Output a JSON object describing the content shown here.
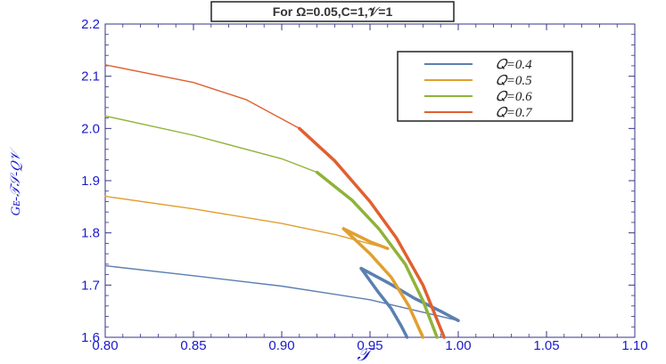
{
  "chart_data": {
    "type": "line",
    "title": "For Ω=0.05,C=1,𝒱=1",
    "xlabel": "𝒯",
    "ylabel": "Gᴇ-𝒯𝒮-𝑄𝒱",
    "xlim": [
      0.8,
      1.1
    ],
    "ylim": [
      1.6,
      2.2
    ],
    "xticks": [
      "0.80",
      "0.85",
      "0.90",
      "0.95",
      "1.00",
      "1.05",
      "1.10"
    ],
    "yticks": [
      "1.6",
      "1.7",
      "1.8",
      "1.9",
      "2.0",
      "2.1",
      "2.2"
    ],
    "grid": false,
    "legend_position": "top-right",
    "series": [
      {
        "name": "𝑄=0.4",
        "color": "#5b7fb0",
        "segments": [
          {
            "x": [
              0.8,
              0.85,
              0.9,
              0.95,
              1.0
            ],
            "y": [
              1.737,
              1.718,
              1.698,
              1.672,
              1.632
            ],
            "width": 1.4
          },
          {
            "x": [
              1.0,
              0.99,
              0.975,
              0.96,
              0.945
            ],
            "y": [
              1.632,
              1.65,
              1.675,
              1.705,
              1.732
            ],
            "width": 3.5
          },
          {
            "x": [
              0.945,
              0.955,
              0.962,
              0.968,
              0.971
            ],
            "y": [
              1.732,
              1.685,
              1.655,
              1.62,
              1.6
            ],
            "width": 3.5
          }
        ]
      },
      {
        "name": "𝑄=0.5",
        "color": "#e0a030",
        "segments": [
          {
            "x": [
              0.8,
              0.85,
              0.9,
              0.93,
              0.96
            ],
            "y": [
              1.87,
              1.846,
              1.818,
              1.797,
              1.77
            ],
            "width": 1.4
          },
          {
            "x": [
              0.96,
              0.95,
              0.935
            ],
            "y": [
              1.77,
              1.783,
              1.808
            ],
            "width": 3.5
          },
          {
            "x": [
              0.935,
              0.95,
              0.962,
              0.972,
              0.98
            ],
            "y": [
              1.808,
              1.76,
              1.715,
              1.66,
              1.6
            ],
            "width": 3.5
          }
        ]
      },
      {
        "name": "𝑄=0.6",
        "color": "#8fb339",
        "segments": [
          {
            "x": [
              0.8,
              0.85,
              0.9,
              0.92
            ],
            "y": [
              2.024,
              1.987,
              1.942,
              1.916
            ],
            "width": 1.4
          },
          {
            "x": [
              0.92,
              0.94,
              0.955,
              0.97,
              0.98,
              0.988
            ],
            "y": [
              1.916,
              1.862,
              1.808,
              1.74,
              1.67,
              1.6
            ],
            "width": 3.5
          }
        ]
      },
      {
        "name": "𝑄=0.7",
        "color": "#e06030",
        "segments": [
          {
            "x": [
              0.8,
              0.85,
              0.88,
              0.91
            ],
            "y": [
              2.122,
              2.088,
              2.055,
              2.0
            ],
            "width": 1.4
          },
          {
            "x": [
              0.91,
              0.93,
              0.95,
              0.965,
              0.98,
              0.992
            ],
            "y": [
              2.0,
              1.938,
              1.86,
              1.79,
              1.7,
              1.6
            ],
            "width": 3.5
          }
        ]
      }
    ]
  }
}
